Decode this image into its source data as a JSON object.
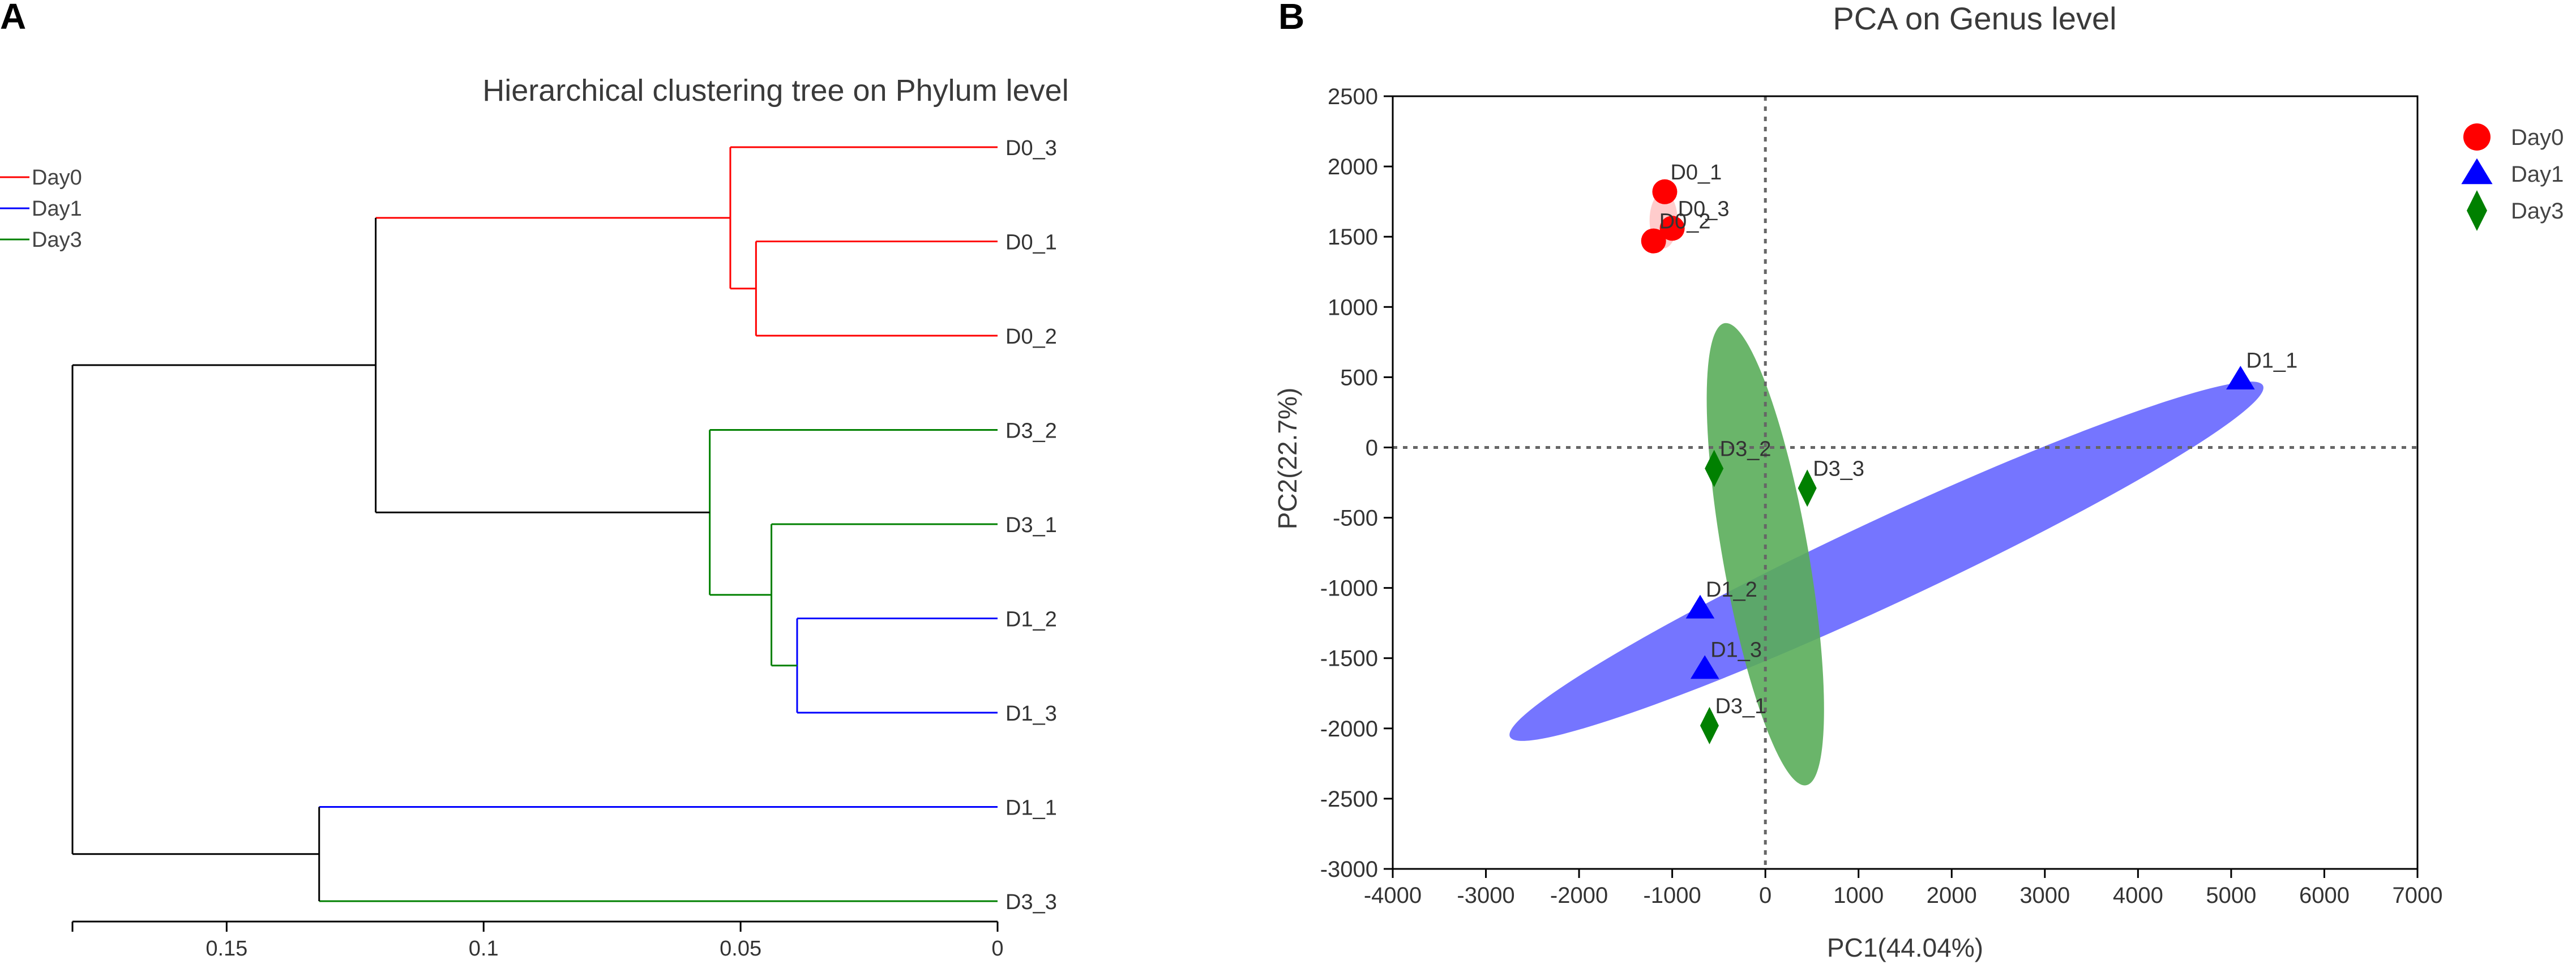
{
  "panels": [
    {
      "letter": "A"
    },
    {
      "letter": "B"
    }
  ],
  "colors": {
    "day0": "#ff0000",
    "day1": "#0000ff",
    "day3": "#008000",
    "root": "#000000",
    "day1_ellipse": "#6666ff",
    "day3_ellipse": "#5aad5a"
  },
  "chart_data": [
    {
      "type": "dendrogram",
      "title": "Hierarchical clustering tree on Phylum level",
      "legend": {
        "position": "top-left",
        "entries": [
          {
            "label": "Day0",
            "color": "#ff0000"
          },
          {
            "label": "Day1",
            "color": "#0000ff"
          },
          {
            "label": "Day3",
            "color": "#008000"
          }
        ]
      },
      "xlim": [
        0.18,
        0
      ],
      "xticks": [
        {
          "value": 0.15,
          "label": "0.15"
        },
        {
          "value": 0.1,
          "label": "0.1"
        },
        {
          "value": 0.05,
          "label": "0.05"
        },
        {
          "value": 0,
          "label": "0"
        }
      ],
      "leaves": [
        {
          "label": "D0_3",
          "group": "Day0"
        },
        {
          "label": "D0_1",
          "group": "Day0"
        },
        {
          "label": "D0_2",
          "group": "Day0"
        },
        {
          "label": "D3_2",
          "group": "Day3"
        },
        {
          "label": "D3_1",
          "group": "Day3"
        },
        {
          "label": "D1_2",
          "group": "Day1"
        },
        {
          "label": "D1_3",
          "group": "Day1"
        },
        {
          "label": "D1_1",
          "group": "Day1"
        },
        {
          "label": "D3_3",
          "group": "Day3"
        }
      ],
      "merges": [
        {
          "children": [
            "D0_1",
            "D0_2"
          ],
          "height": 0.047,
          "color": "#ff0000"
        },
        {
          "children": [
            [
              "D0_1",
              "D0_2"
            ],
            "D0_3"
          ],
          "height": 0.052,
          "color": "#ff0000"
        },
        {
          "children": [
            "D1_2",
            "D1_3"
          ],
          "height": 0.039,
          "color": "#0000ff"
        },
        {
          "children": [
            "D3_1",
            [
              "D1_2",
              "D1_3"
            ]
          ],
          "height": 0.044,
          "color": "#008000"
        },
        {
          "children": [
            "D3_2",
            [
              [
                "D3_1"
              ],
              [
                "D1_2",
                "D1_3"
              ]
            ]
          ],
          "height": 0.056,
          "color": "#008000"
        },
        {
          "children": [
            "Day0 cluster",
            "Day3/Day1 cluster"
          ],
          "height": 0.121,
          "color": "#000000"
        },
        {
          "children": [
            "D1_1",
            "D3_3"
          ],
          "height": 0.132,
          "color": "#000000"
        },
        {
          "children": [
            "upper",
            "lower"
          ],
          "height": 0.18,
          "color": "#000000"
        }
      ]
    },
    {
      "type": "scatter",
      "title": "PCA on Genus level",
      "xlabel": "PC1(44.04%)",
      "ylabel": "PC2(22.7%)",
      "xlim": [
        -4000,
        7000
      ],
      "ylim": [
        -3000,
        2500
      ],
      "xticks": [
        -4000,
        -3000,
        -2000,
        -1000,
        0,
        1000,
        2000,
        3000,
        4000,
        5000,
        6000,
        7000
      ],
      "yticks": [
        2500,
        2000,
        1500,
        1000,
        500,
        0,
        -500,
        -1000,
        -1500,
        -2000,
        -2500,
        -3000
      ],
      "grid": false,
      "zero_lines": "dotted",
      "legend": {
        "position": "right",
        "entries": [
          {
            "label": "Day0",
            "marker": "circle",
            "color": "#ff0000"
          },
          {
            "label": "Day1",
            "marker": "triangle",
            "color": "#0000ff"
          },
          {
            "label": "Day3",
            "marker": "diamond",
            "color": "#008000"
          }
        ]
      },
      "series": [
        {
          "name": "Day0",
          "marker": "circle",
          "color": "#ff0000",
          "points": [
            {
              "label": "D0_1",
              "x": -1080,
              "y": 1820
            },
            {
              "label": "D0_3",
              "x": -1000,
              "y": 1560
            },
            {
              "label": "D0_2",
              "x": -1200,
              "y": 1470
            }
          ]
        },
        {
          "name": "Day1",
          "marker": "triangle",
          "color": "#0000ff",
          "points": [
            {
              "label": "D1_1",
              "x": 5100,
              "y": 480
            },
            {
              "label": "D1_2",
              "x": -700,
              "y": -1150
            },
            {
              "label": "D1_3",
              "x": -650,
              "y": -1580
            }
          ]
        },
        {
          "name": "Day3",
          "marker": "diamond",
          "color": "#008000",
          "points": [
            {
              "label": "D3_2",
              "x": -550,
              "y": -150
            },
            {
              "label": "D3_3",
              "x": 450,
              "y": -290
            },
            {
              "label": "D3_1",
              "x": -600,
              "y": -1980
            }
          ]
        }
      ],
      "ellipses": [
        {
          "group": "Day0",
          "color": "#ff9999",
          "opacity": 0.5,
          "cx": -1093,
          "cy": 1617,
          "rx": 150,
          "ry": 200,
          "angle_deg": 0
        },
        {
          "group": "Day1",
          "color": "#6666ff",
          "opacity": 0.9,
          "cx": 1300,
          "cy": -810,
          "rx": 4460,
          "ry": 300,
          "angle_deg": 25
        },
        {
          "group": "Day3",
          "color": "#5aad5a",
          "opacity": 0.9,
          "cx": 0,
          "cy": -760,
          "rx": 460,
          "ry": 1670,
          "angle_deg": 10
        }
      ]
    }
  ]
}
